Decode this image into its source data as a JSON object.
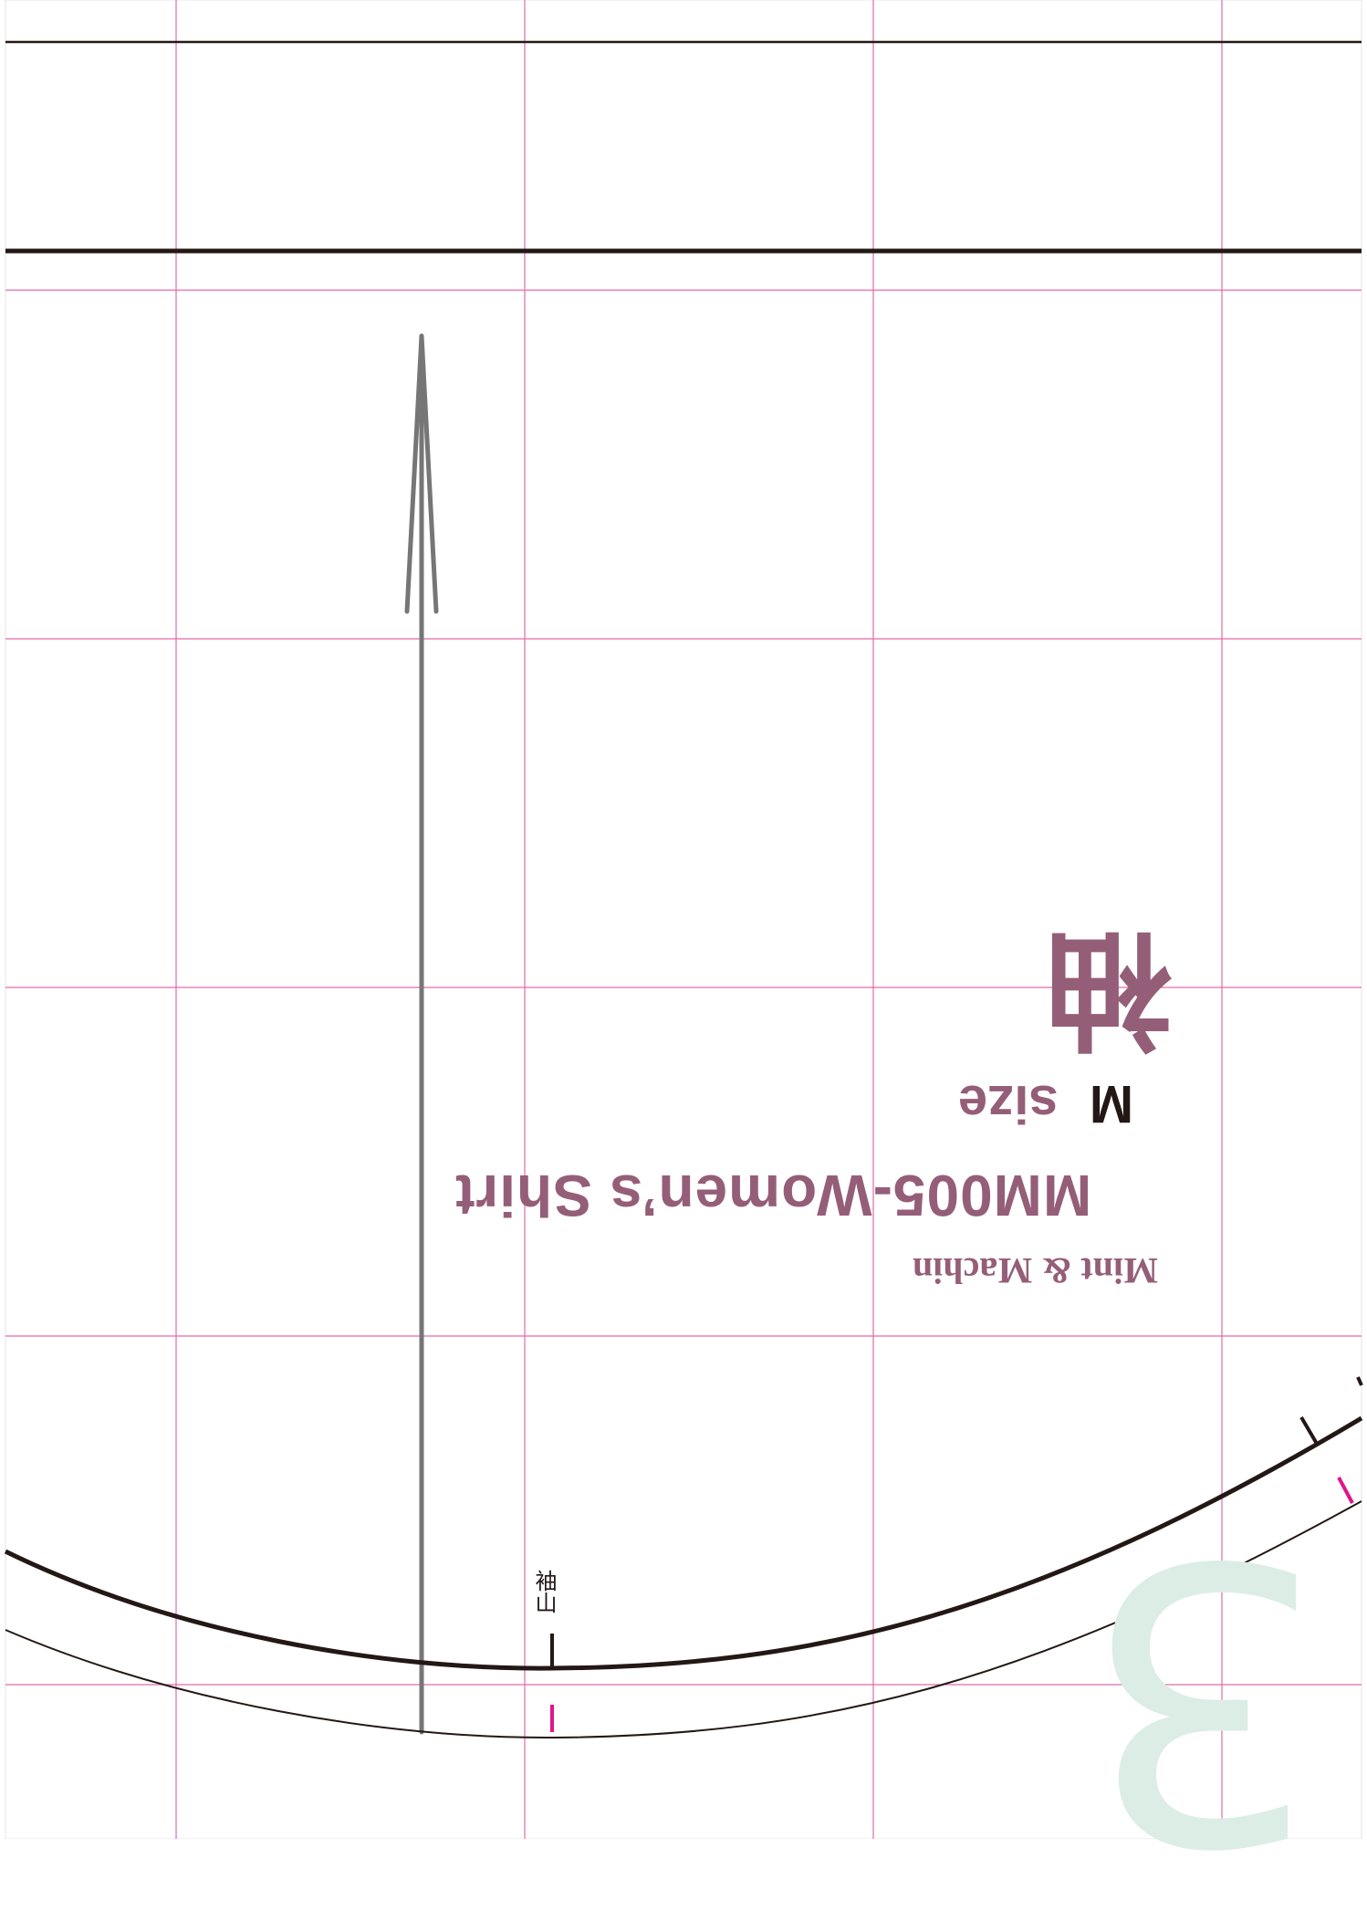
{
  "pattern": {
    "part_name": "袖",
    "size_letter": "M",
    "size_word": "size",
    "product_title": "MM005-Women’s Shirt",
    "brand": "Mint & Machin",
    "seam_label": "袖山",
    "page_number": "3"
  },
  "colors": {
    "grid": "#e46aa8",
    "title": "#955e78",
    "outline": "#231815",
    "grainline": "#767676",
    "notch": "#e0168a",
    "page_number": "#dcede6"
  }
}
